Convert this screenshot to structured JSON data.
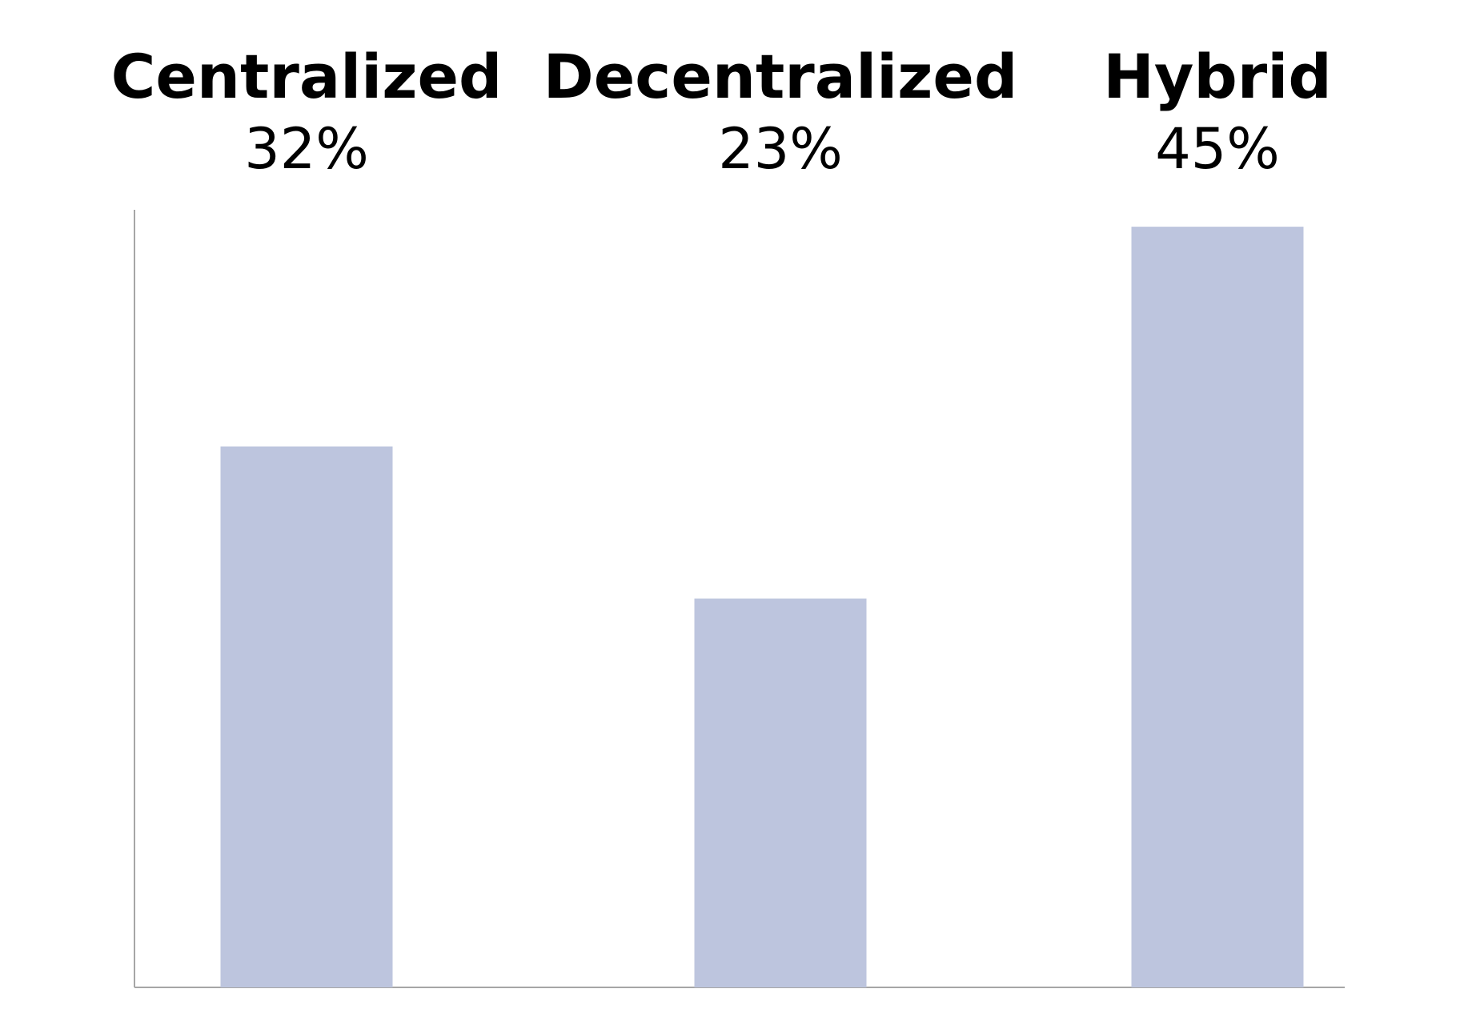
{
  "chart_data": {
    "type": "bar",
    "categories": [
      "Centralized",
      "Decentralized",
      "Hybrid"
    ],
    "values": [
      32,
      23,
      45
    ],
    "value_labels": [
      "32%",
      "23%",
      "45%"
    ],
    "ylim": [
      0,
      46
    ],
    "grid": false,
    "colors": {
      "bar": "#bdc5de",
      "axis": "#a6a6a6",
      "text": "#000000"
    }
  }
}
